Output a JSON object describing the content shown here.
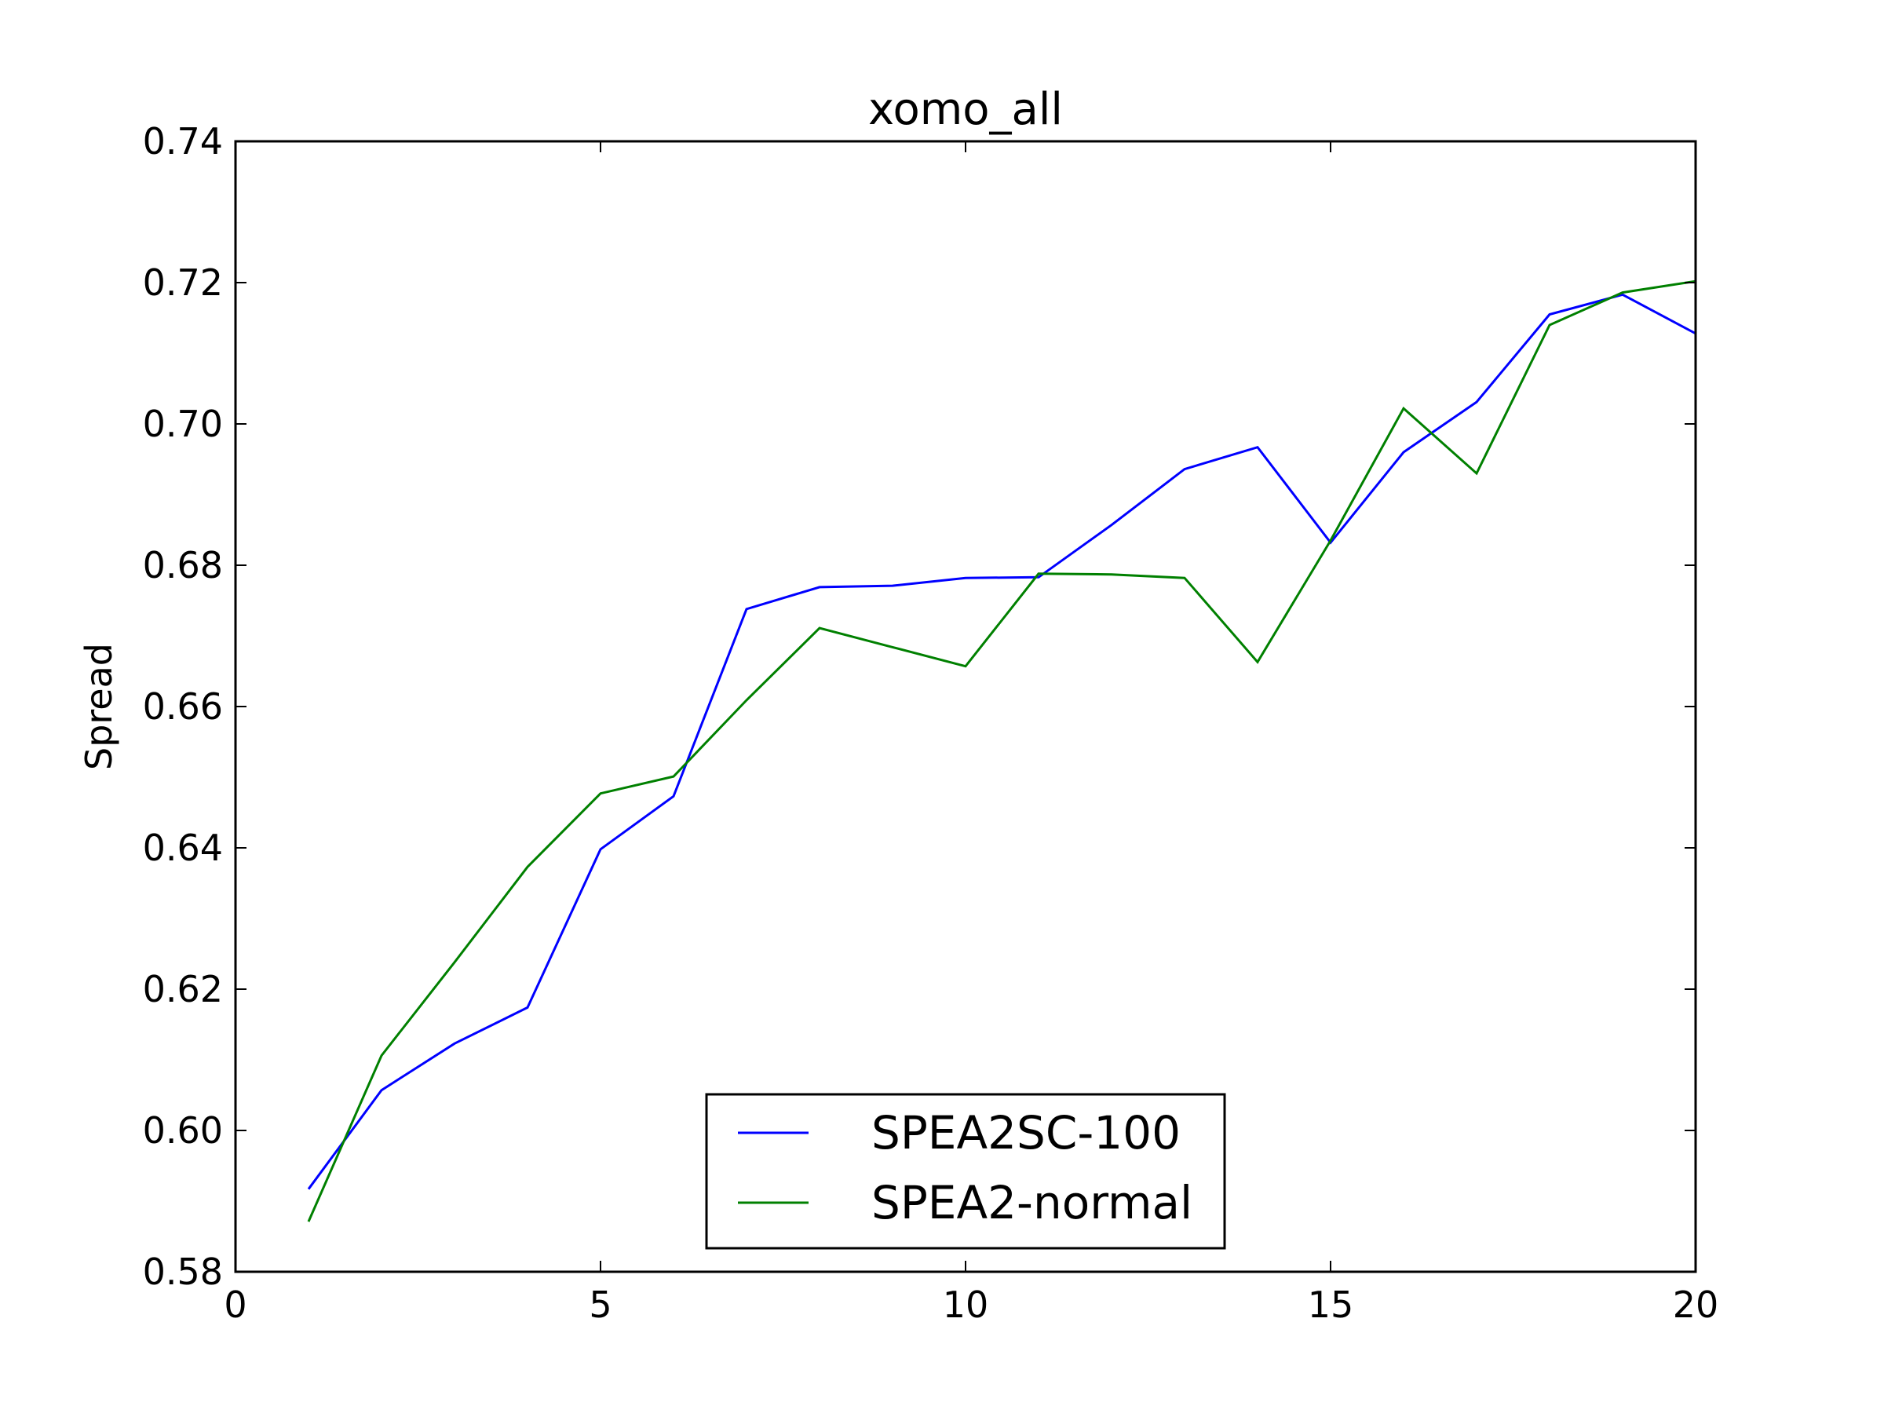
{
  "chart_data": {
    "type": "line",
    "title": "xomo_all",
    "xlabel": "",
    "ylabel": "Spread",
    "xlim": [
      0,
      20
    ],
    "ylim": [
      0.58,
      0.74
    ],
    "xticks": [
      0,
      5,
      10,
      15,
      20
    ],
    "xtick_labels": [
      "0",
      "5",
      "10",
      "15",
      "20"
    ],
    "yticks": [
      0.58,
      0.6,
      0.62,
      0.64,
      0.66,
      0.68,
      0.7,
      0.72,
      0.74
    ],
    "ytick_labels": [
      "0.58",
      "0.60",
      "0.62",
      "0.64",
      "0.66",
      "0.68",
      "0.70",
      "0.72",
      "0.74"
    ],
    "grid": false,
    "legend_position": "lower center",
    "x": [
      1,
      2,
      3,
      4,
      5,
      6,
      7,
      8,
      9,
      10,
      11,
      12,
      13,
      14,
      15,
      16,
      17,
      18,
      19,
      20
    ],
    "series": [
      {
        "name": "SPEA2SC-100",
        "color": "#0000ff",
        "values": [
          0.5917,
          0.6057,
          0.6123,
          0.6174,
          0.6398,
          0.6473,
          0.6738,
          0.6769,
          0.6771,
          0.6782,
          0.6783,
          0.6857,
          0.6936,
          0.6967,
          0.6832,
          0.696,
          0.7031,
          0.7155,
          0.7183,
          0.7128
        ]
      },
      {
        "name": "SPEA2-normal",
        "color": "#008000",
        "values": [
          0.5871,
          0.6106,
          0.6238,
          0.6373,
          0.6477,
          0.6501,
          0.6609,
          0.6711,
          0.6684,
          0.6657,
          0.6788,
          0.6787,
          0.6782,
          0.6663,
          0.6835,
          0.7022,
          0.693,
          0.714,
          0.7186,
          0.7202
        ]
      }
    ]
  }
}
